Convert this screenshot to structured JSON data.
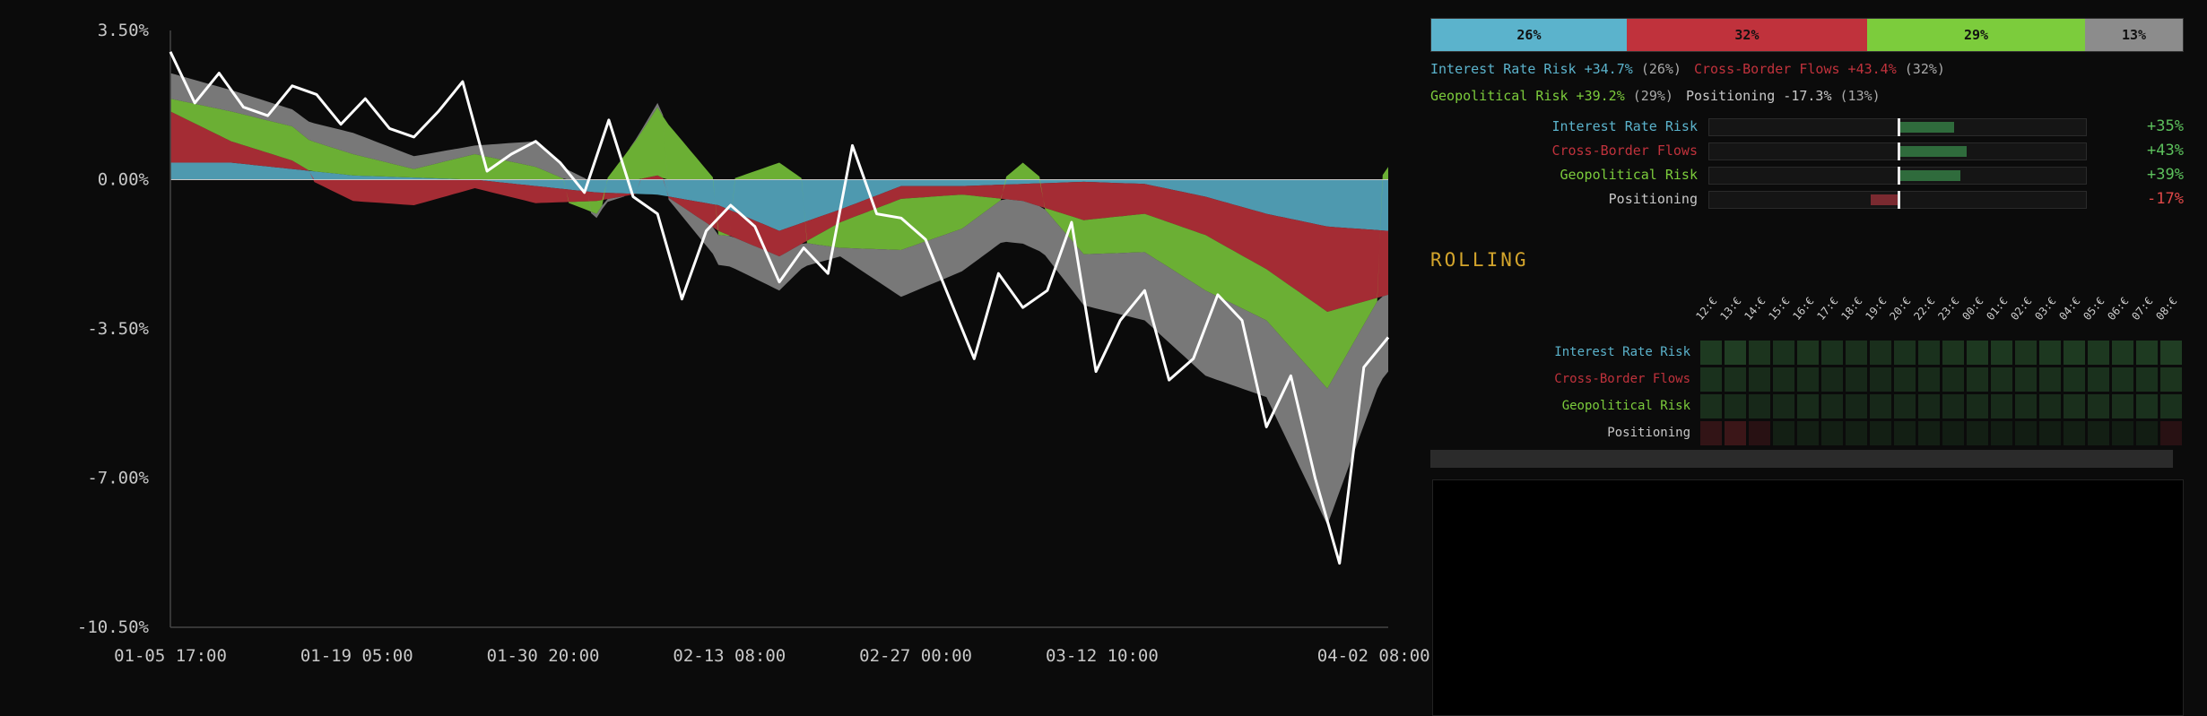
{
  "colors": {
    "interest": "#5bb3cc",
    "crossborder": "#c0323c",
    "geopolitical": "#7ccc3c",
    "positioning": "#8c8c8c",
    "total": "#ffffff",
    "bar_pos": "#2f6b3c",
    "bar_neg": "#7a2a30",
    "rolling": "#d4a52c"
  },
  "chart_data": {
    "type": "area",
    "subtype": "stacked attribution area with total line",
    "x_ticks": [
      "01-05 17:00",
      "01-19 05:00",
      "01-30 20:00",
      "02-13 08:00",
      "02-27 00:00",
      "03-12 10:00",
      "04-02 08:00"
    ],
    "y_ticks": [
      "3.50%",
      "0.00%",
      "-3.50%",
      "-7.00%",
      "-10.50%"
    ],
    "ylim": [
      -10.5,
      3.5
    ],
    "grid": false,
    "legend": "none",
    "series": [
      {
        "name": "Interest Rate Risk",
        "color_key": "interest",
        "x": [
          0,
          0.05,
          0.1,
          0.15,
          0.2,
          0.25,
          0.3,
          0.35,
          0.4,
          0.45,
          0.5,
          0.55,
          0.6,
          0.65,
          0.7,
          0.75,
          0.8,
          0.85,
          0.9,
          0.95,
          1
        ],
        "values": [
          0.4,
          0.4,
          0.25,
          0.1,
          0.05,
          0.0,
          -0.15,
          -0.3,
          -0.35,
          -0.6,
          -1.2,
          -0.7,
          -0.15,
          -0.15,
          -0.1,
          -0.05,
          -0.1,
          -0.4,
          -0.8,
          -1.1,
          -1.2
        ]
      },
      {
        "name": "Cross-Border Flows",
        "color_key": "crossborder",
        "x": [
          0,
          0.05,
          0.1,
          0.15,
          0.2,
          0.25,
          0.3,
          0.35,
          0.4,
          0.45,
          0.5,
          0.55,
          0.6,
          0.65,
          0.7,
          0.75,
          0.8,
          0.85,
          0.9,
          0.95,
          1
        ],
        "values": [
          1.2,
          0.5,
          0.2,
          -0.5,
          -0.6,
          -0.2,
          -0.4,
          -0.2,
          0.1,
          -0.6,
          -0.6,
          -0.3,
          -0.3,
          -0.2,
          -0.4,
          -0.9,
          -0.7,
          -0.9,
          -1.3,
          -2.0,
          -1.5
        ]
      },
      {
        "name": "Geopolitical Risk",
        "color_key": "geopolitical",
        "x": [
          0,
          0.05,
          0.1,
          0.15,
          0.2,
          0.25,
          0.3,
          0.35,
          0.4,
          0.45,
          0.5,
          0.55,
          0.6,
          0.65,
          0.7,
          0.75,
          0.8,
          0.85,
          0.9,
          0.95,
          1
        ],
        "values": [
          0.3,
          0.7,
          0.8,
          0.5,
          0.2,
          0.6,
          0.3,
          -0.3,
          1.6,
          -0.1,
          0.4,
          -0.6,
          -1.2,
          -0.8,
          0.4,
          -0.8,
          -0.9,
          -1.3,
          -1.2,
          -1.8,
          0.3
        ]
      },
      {
        "name": "Positioning",
        "color_key": "positioning",
        "x": [
          0,
          0.05,
          0.1,
          0.15,
          0.2,
          0.25,
          0.3,
          0.35,
          0.4,
          0.45,
          0.5,
          0.55,
          0.6,
          0.65,
          0.7,
          0.75,
          0.8,
          0.85,
          0.9,
          0.95,
          1
        ],
        "values": [
          0.6,
          0.5,
          0.4,
          0.5,
          0.3,
          0.2,
          0.6,
          -0.1,
          0.1,
          -0.7,
          -0.8,
          -0.2,
          -1.1,
          -1.0,
          -1.0,
          -1.2,
          -1.6,
          -2.0,
          -1.8,
          -3.2,
          -1.8
        ]
      },
      {
        "name": "Total",
        "color_key": "total",
        "x": [
          0,
          0.02,
          0.04,
          0.06,
          0.08,
          0.1,
          0.12,
          0.14,
          0.16,
          0.18,
          0.2,
          0.22,
          0.24,
          0.26,
          0.28,
          0.3,
          0.32,
          0.34,
          0.36,
          0.38,
          0.4,
          0.42,
          0.44,
          0.46,
          0.48,
          0.5,
          0.52,
          0.54,
          0.56,
          0.58,
          0.6,
          0.62,
          0.64,
          0.66,
          0.68,
          0.7,
          0.72,
          0.74,
          0.76,
          0.78,
          0.8,
          0.82,
          0.84,
          0.86,
          0.88,
          0.9,
          0.92,
          0.94,
          0.96,
          0.98,
          1
        ],
        "values": [
          3.0,
          1.8,
          2.5,
          1.7,
          1.5,
          2.2,
          2.0,
          1.3,
          1.9,
          1.2,
          1.0,
          1.6,
          2.3,
          0.2,
          0.6,
          0.9,
          0.4,
          -0.3,
          1.4,
          -0.4,
          -0.8,
          -2.8,
          -1.2,
          -0.6,
          -1.1,
          -2.4,
          -1.6,
          -2.2,
          0.8,
          -0.8,
          -0.9,
          -1.4,
          -2.8,
          -4.2,
          -2.2,
          -3.0,
          -2.6,
          -1.0,
          -4.5,
          -3.3,
          -2.6,
          -4.7,
          -4.2,
          -2.7,
          -3.3,
          -5.8,
          -4.6,
          -7.0,
          -9.0,
          -4.4,
          -3.7
        ]
      }
    ]
  },
  "share_bar": [
    {
      "label": "26%",
      "pct": 26,
      "color_key": "interest"
    },
    {
      "label": "32%",
      "pct": 32,
      "color_key": "crossborder"
    },
    {
      "label": "29%",
      "pct": 29,
      "color_key": "geopolitical"
    },
    {
      "label": "13%",
      "pct": 13,
      "color_key": "positioning"
    }
  ],
  "legend": [
    {
      "name": "Interest Rate Risk",
      "contrib": "+34.7%",
      "share": "(26%)",
      "color_key": "interest"
    },
    {
      "name": "Cross-Border Flows",
      "contrib": "+43.4%",
      "share": "(32%)",
      "color_key": "crossborder"
    },
    {
      "name": "Geopolitical Risk",
      "contrib": "+39.2%",
      "share": "(29%)",
      "color_key": "geopolitical"
    },
    {
      "name": "Positioning",
      "contrib": "-17.3%",
      "share": "(13%)",
      "color_key": "positioning"
    }
  ],
  "factor_bars": [
    {
      "name": "Interest Rate Risk",
      "value": 35,
      "label": "+35%",
      "color_key": "interest"
    },
    {
      "name": "Cross-Border Flows",
      "value": 43,
      "label": "+43%",
      "color_key": "crossborder"
    },
    {
      "name": "Geopolitical Risk",
      "value": 39,
      "label": "+39%",
      "color_key": "geopolitical"
    },
    {
      "name": "Positioning",
      "value": -17,
      "label": "-17%",
      "color_key": "positioning"
    }
  ],
  "rolling": {
    "title": "ROLLING",
    "columns": [
      "12:€",
      "13:€",
      "14:€",
      "15:€",
      "16:€",
      "17:€",
      "18:€",
      "19:€",
      "20:€",
      "22:€",
      "23:€",
      "00:€",
      "01:€",
      "02:€",
      "03:€",
      "04:€",
      "05:€",
      "06:€",
      "07:€",
      "08:€"
    ],
    "rows": [
      {
        "name": "Interest Rate Risk",
        "color_key": "interest",
        "values": [
          0.55,
          0.6,
          0.45,
          0.4,
          0.45,
          0.4,
          0.35,
          0.35,
          0.4,
          0.4,
          0.45,
          0.5,
          0.5,
          0.45,
          0.5,
          0.55,
          0.5,
          0.5,
          0.55,
          0.6
        ]
      },
      {
        "name": "Cross-Border Flows",
        "color_key": "crossborder",
        "values": [
          0.4,
          0.35,
          0.3,
          0.3,
          0.3,
          0.25,
          0.25,
          0.25,
          0.3,
          0.3,
          0.3,
          0.35,
          0.35,
          0.35,
          0.35,
          0.4,
          0.4,
          0.4,
          0.4,
          0.45
        ]
      },
      {
        "name": "Geopolitical Risk",
        "color_key": "geopolitical",
        "values": [
          0.35,
          0.3,
          0.25,
          0.25,
          0.3,
          0.25,
          0.2,
          0.25,
          0.25,
          0.25,
          0.25,
          0.3,
          0.3,
          0.3,
          0.3,
          0.35,
          0.35,
          0.35,
          0.4,
          0.4
        ]
      },
      {
        "name": "Positioning",
        "color_key": "positioning",
        "values": [
          -0.2,
          -0.3,
          -0.1,
          0.1,
          0.1,
          0.1,
          0.1,
          0.1,
          0.1,
          0.1,
          0.05,
          0.1,
          0.05,
          0.05,
          0.05,
          0.1,
          0.1,
          0.05,
          0.05,
          -0.1
        ]
      }
    ]
  }
}
